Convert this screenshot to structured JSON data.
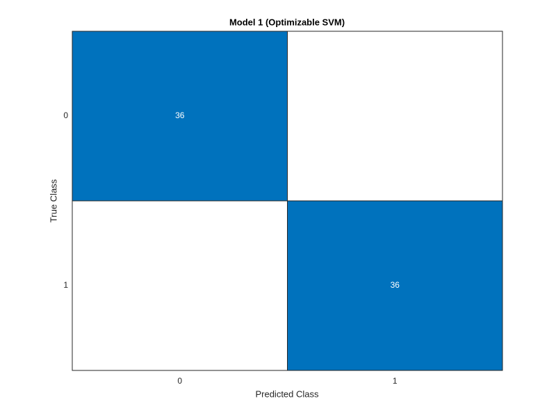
{
  "chart_data": {
    "type": "confusion_matrix",
    "title": "Model 1 (Optimizable SVM)",
    "x_label": "Predicted Class",
    "y_label": "True Class",
    "row_categories": [
      "0",
      "1"
    ],
    "col_categories": [
      "0",
      "1"
    ],
    "values": [
      [
        36,
        0
      ],
      [
        0,
        36
      ]
    ],
    "color": "#0072bd",
    "text_color": "#ffffff"
  }
}
